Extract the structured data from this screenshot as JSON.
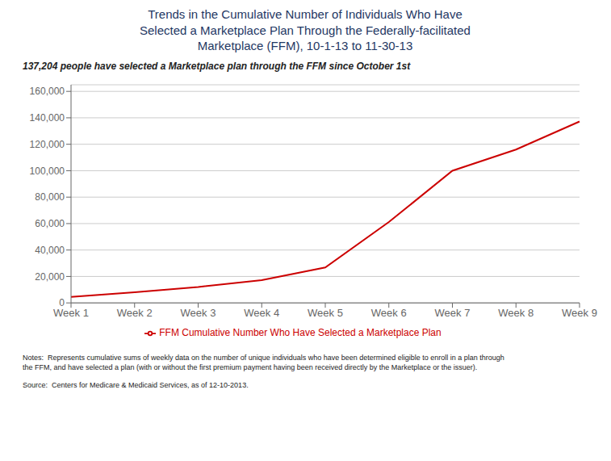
{
  "chart_data": {
    "type": "line",
    "title": "Trends in the Cumulative Number of Individuals Who Have\nSelected a Marketplace Plan Through the Federally-facilitated\nMarketplace (FFM), 10-1-13 to 11-30-13",
    "subtitle": "137,204 people have selected a Marketplace plan through the FFM since October 1st",
    "categories": [
      "Week 1",
      "Week 2",
      "Week 3",
      "Week 4",
      "Week 5",
      "Week 6",
      "Week 7",
      "Week 8",
      "Week 9"
    ],
    "series": [
      {
        "name": "FFM Cumulative Number Who Have Selected a Marketplace Plan",
        "color": "#cc0000",
        "values": [
          4506,
          8107,
          12026,
          17218,
          26794,
          61134,
          100000,
          116000,
          137204
        ]
      }
    ],
    "ylim": [
      0,
      165000
    ],
    "yticks": [
      0,
      {
        "value": 20000,
        "label": "20,000"
      },
      {
        "value": 40000,
        "label": "40,000"
      },
      {
        "value": 60000,
        "label": "60,000"
      },
      {
        "value": 80000,
        "label": "80,000"
      },
      {
        "value": 100000,
        "label": "100,000"
      },
      {
        "value": 120000,
        "label": "120,000"
      },
      {
        "value": 140000,
        "label": "140,000"
      },
      {
        "value": 160000,
        "label": "160,000"
      }
    ],
    "grid": true,
    "legend": "bottom",
    "annotations": [
      "Notes:  Represents cumulative sums of weekly data on the number of unique individuals who have been determined eligible to enroll in a plan through\nthe FFM, and have selected a plan (with or without the first premium payment having been received directly by the Marketplace or the issuer).",
      "Source:  Centers for Medicare & Medicaid Services, as of 12-10-2013."
    ]
  }
}
